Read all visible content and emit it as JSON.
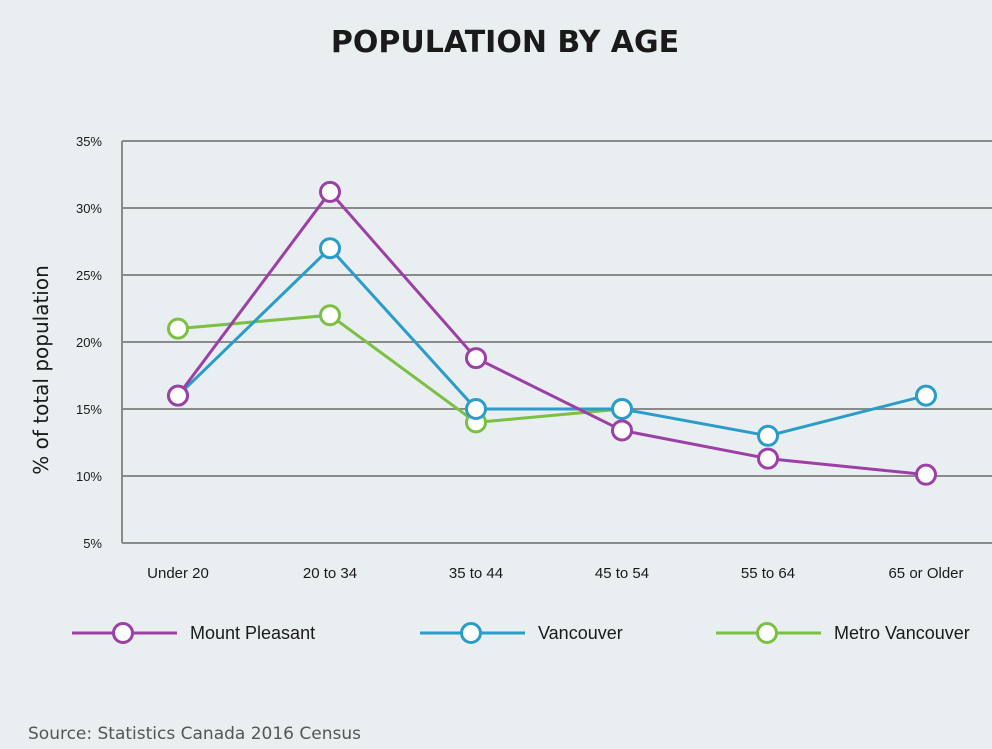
{
  "chart_data": {
    "type": "line",
    "title": "POPULATION BY AGE",
    "ylabel": "% of total population",
    "xlabel": "",
    "categories": [
      "Under 20",
      "20 to 34",
      "35 to 44",
      "45 to 54",
      "55 to 64",
      "65 or Older"
    ],
    "ylim": [
      5,
      35
    ],
    "yticks": [
      5,
      10,
      15,
      20,
      25,
      30,
      35
    ],
    "ytick_labels": [
      "5%",
      "10%",
      "15%",
      "20%",
      "25%",
      "30%",
      "35%"
    ],
    "grid": true,
    "legend_position": "bottom",
    "series": [
      {
        "name": "Mount Pleasant",
        "color": "#9c3fa6",
        "values": [
          16,
          31.2,
          18.8,
          13.4,
          11.3,
          10.1
        ]
      },
      {
        "name": "Vancouver",
        "color": "#2a9cc9",
        "values": [
          16,
          27,
          15,
          15,
          13,
          16
        ]
      },
      {
        "name": "Metro Vancouver",
        "color": "#7bc043",
        "values": [
          21,
          22,
          14,
          15,
          null,
          null
        ]
      }
    ],
    "source": "Source: Statistics Canada 2016 Census"
  }
}
